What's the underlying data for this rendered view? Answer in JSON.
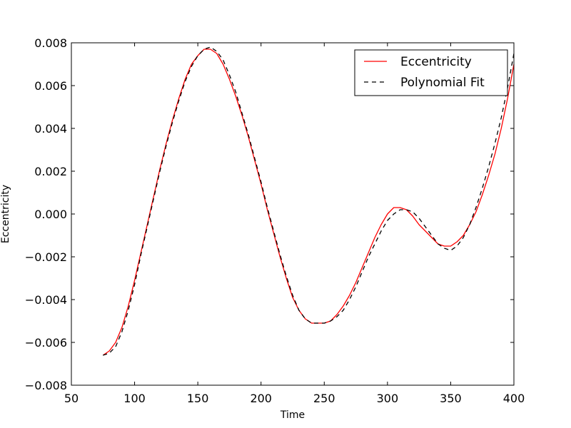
{
  "chart_data": {
    "type": "line",
    "title": "",
    "xlabel": "Time",
    "ylabel": "Eccentricity",
    "xlim": [
      50,
      400
    ],
    "ylim": [
      -0.008,
      0.008
    ],
    "x_ticks": [
      50,
      100,
      150,
      200,
      250,
      300,
      350,
      400
    ],
    "x_tick_labels": [
      "50",
      "100",
      "150",
      "200",
      "250",
      "300",
      "350",
      "400"
    ],
    "y_ticks": [
      -0.008,
      -0.006,
      -0.004,
      -0.002,
      0.0,
      0.002,
      0.004,
      0.006,
      0.008
    ],
    "y_tick_labels": [
      "−0.008",
      "−0.006",
      "−0.004",
      "−0.002",
      "0.000",
      "0.002",
      "0.004",
      "0.006",
      "0.008"
    ],
    "grid": false,
    "legend_position": "top-right",
    "series": [
      {
        "name": "Eccentricity",
        "color": "#ff0000",
        "style": "solid",
        "points": [
          [
            75,
            -0.0066
          ],
          [
            80,
            -0.0064
          ],
          [
            85,
            -0.006
          ],
          [
            90,
            -0.0053
          ],
          [
            95,
            -0.0043
          ],
          [
            100,
            -0.0031
          ],
          [
            105,
            -0.0018
          ],
          [
            110,
            -0.0005
          ],
          [
            115,
            0.0008
          ],
          [
            120,
            0.0021
          ],
          [
            125,
            0.0033
          ],
          [
            130,
            0.0044
          ],
          [
            135,
            0.0054
          ],
          [
            140,
            0.0063
          ],
          [
            145,
            0.007
          ],
          [
            150,
            0.0074
          ],
          [
            155,
            0.0077
          ],
          [
            160,
            0.0077
          ],
          [
            165,
            0.0075
          ],
          [
            170,
            0.007
          ],
          [
            175,
            0.0063
          ],
          [
            180,
            0.0055
          ],
          [
            185,
            0.0046
          ],
          [
            190,
            0.0036
          ],
          [
            195,
            0.0025
          ],
          [
            200,
            0.0014
          ],
          [
            205,
            0.0002
          ],
          [
            210,
            -0.0009
          ],
          [
            215,
            -0.002
          ],
          [
            220,
            -0.003
          ],
          [
            225,
            -0.0039
          ],
          [
            230,
            -0.0045
          ],
          [
            235,
            -0.0049
          ],
          [
            240,
            -0.0051
          ],
          [
            245,
            -0.0051
          ],
          [
            250,
            -0.0051
          ],
          [
            255,
            -0.005
          ],
          [
            260,
            -0.0047
          ],
          [
            265,
            -0.0043
          ],
          [
            270,
            -0.0038
          ],
          [
            275,
            -0.0032
          ],
          [
            280,
            -0.0025
          ],
          [
            285,
            -0.0018
          ],
          [
            290,
            -0.0011
          ],
          [
            295,
            -0.0005
          ],
          [
            300,
            0.0
          ],
          [
            305,
            0.0003
          ],
          [
            310,
            0.0003
          ],
          [
            315,
            0.0002
          ],
          [
            320,
            -0.0001
          ],
          [
            325,
            -0.0005
          ],
          [
            330,
            -0.0008
          ],
          [
            335,
            -0.0011
          ],
          [
            340,
            -0.0014
          ],
          [
            345,
            -0.0015
          ],
          [
            350,
            -0.0015
          ],
          [
            355,
            -0.0013
          ],
          [
            360,
            -0.001
          ],
          [
            365,
            -0.0005
          ],
          [
            370,
            0.0001
          ],
          [
            375,
            0.0009
          ],
          [
            380,
            0.0018
          ],
          [
            385,
            0.0028
          ],
          [
            390,
            0.004
          ],
          [
            395,
            0.0054
          ],
          [
            400,
            0.007
          ]
        ]
      },
      {
        "name": "Polynomial Fit",
        "color": "#000000",
        "style": "dashed",
        "points": [
          [
            75,
            -0.0066
          ],
          [
            80,
            -0.0065
          ],
          [
            85,
            -0.0062
          ],
          [
            90,
            -0.0055
          ],
          [
            95,
            -0.0045
          ],
          [
            100,
            -0.0033
          ],
          [
            105,
            -0.0019
          ],
          [
            110,
            -0.0006
          ],
          [
            115,
            0.0007
          ],
          [
            120,
            0.002
          ],
          [
            125,
            0.0032
          ],
          [
            130,
            0.0043
          ],
          [
            135,
            0.0053
          ],
          [
            140,
            0.0062
          ],
          [
            145,
            0.0069
          ],
          [
            150,
            0.0074
          ],
          [
            155,
            0.0077
          ],
          [
            160,
            0.0078
          ],
          [
            165,
            0.0076
          ],
          [
            170,
            0.0072
          ],
          [
            175,
            0.0065
          ],
          [
            180,
            0.0057
          ],
          [
            185,
            0.0047
          ],
          [
            190,
            0.0037
          ],
          [
            195,
            0.0026
          ],
          [
            200,
            0.0015
          ],
          [
            205,
            0.0003
          ],
          [
            210,
            -0.0008
          ],
          [
            215,
            -0.0019
          ],
          [
            220,
            -0.0029
          ],
          [
            225,
            -0.0038
          ],
          [
            230,
            -0.0045
          ],
          [
            235,
            -0.0049
          ],
          [
            240,
            -0.0051
          ],
          [
            245,
            -0.0051
          ],
          [
            250,
            -0.0051
          ],
          [
            255,
            -0.005
          ],
          [
            260,
            -0.0048
          ],
          [
            265,
            -0.0045
          ],
          [
            270,
            -0.004
          ],
          [
            275,
            -0.0034
          ],
          [
            280,
            -0.0027
          ],
          [
            285,
            -0.002
          ],
          [
            290,
            -0.0014
          ],
          [
            295,
            -0.0008
          ],
          [
            300,
            -0.0003
          ],
          [
            305,
            0.0
          ],
          [
            310,
            0.0002
          ],
          [
            315,
            0.0002
          ],
          [
            320,
            0.0001
          ],
          [
            325,
            -0.0002
          ],
          [
            330,
            -0.0006
          ],
          [
            335,
            -0.001
          ],
          [
            340,
            -0.0014
          ],
          [
            345,
            -0.0016
          ],
          [
            350,
            -0.0017
          ],
          [
            355,
            -0.0015
          ],
          [
            360,
            -0.0011
          ],
          [
            365,
            -0.0005
          ],
          [
            370,
            0.0003
          ],
          [
            375,
            0.0012
          ],
          [
            380,
            0.0022
          ],
          [
            385,
            0.0033
          ],
          [
            390,
            0.0045
          ],
          [
            395,
            0.0059
          ],
          [
            400,
            0.0075
          ]
        ]
      }
    ]
  }
}
